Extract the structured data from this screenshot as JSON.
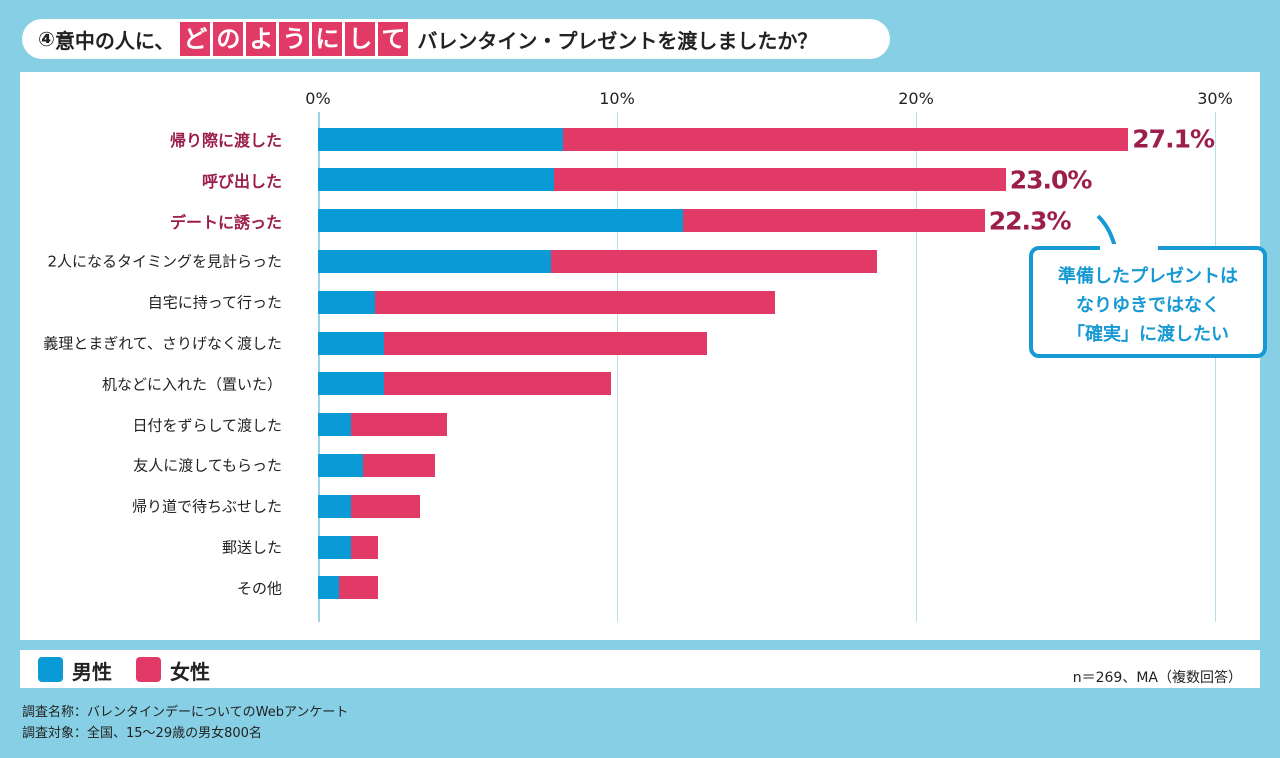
{
  "title": {
    "number": "④",
    "prefix": "意中の人に、",
    "emphasis": [
      "ど",
      "の",
      "よ",
      "う",
      "に",
      "し",
      "て"
    ],
    "suffix": "バレンタイン・プレゼントを渡しましたか？"
  },
  "chart_data": {
    "type": "bar",
    "stacked": true,
    "orientation": "horizontal",
    "categories": [
      "帰り際に渡した",
      "呼び出した",
      "デートに誘った",
      "2人になるタイミングを見計らった",
      "自宅に持って行った",
      "義理とまぎれて、さりげなく渡した",
      "机などに入れた（置いた）",
      "日付をずらして渡した",
      "友人に渡してもらった",
      "帰り道で待ちぶせした",
      "郵送した",
      "その他"
    ],
    "highlighted_categories": [
      0,
      1,
      2
    ],
    "series": [
      {
        "name": "男性",
        "color": "#0a9ad6",
        "values": [
          8.2,
          7.9,
          12.2,
          7.8,
          1.9,
          2.2,
          2.2,
          1.1,
          1.5,
          1.1,
          1.1,
          0.7
        ]
      },
      {
        "name": "女性",
        "color": "#e23a66",
        "values": [
          18.9,
          15.1,
          10.1,
          10.9,
          13.4,
          10.8,
          7.6,
          3.2,
          2.4,
          2.3,
          0.9,
          1.3
        ]
      }
    ],
    "total_labels": [
      "27.1%",
      "23.0%",
      "22.3%"
    ],
    "xticks": [
      "0%",
      "10%",
      "20%",
      "30%"
    ],
    "xlim": [
      0,
      30
    ],
    "grid": true,
    "legend_position": "bottom-left"
  },
  "callout": {
    "lines": [
      "準備したプレゼントは",
      "なりゆきではなく",
      "「確実」に渡したい"
    ]
  },
  "legend": {
    "male": "男性",
    "female": "女性"
  },
  "note": "n＝269、MA（複数回答）",
  "footer": {
    "line1": "調査名称：バレンタインデーについてのWebアンケート",
    "line2": "調査対象：全国、15～29歳の男女800名"
  }
}
